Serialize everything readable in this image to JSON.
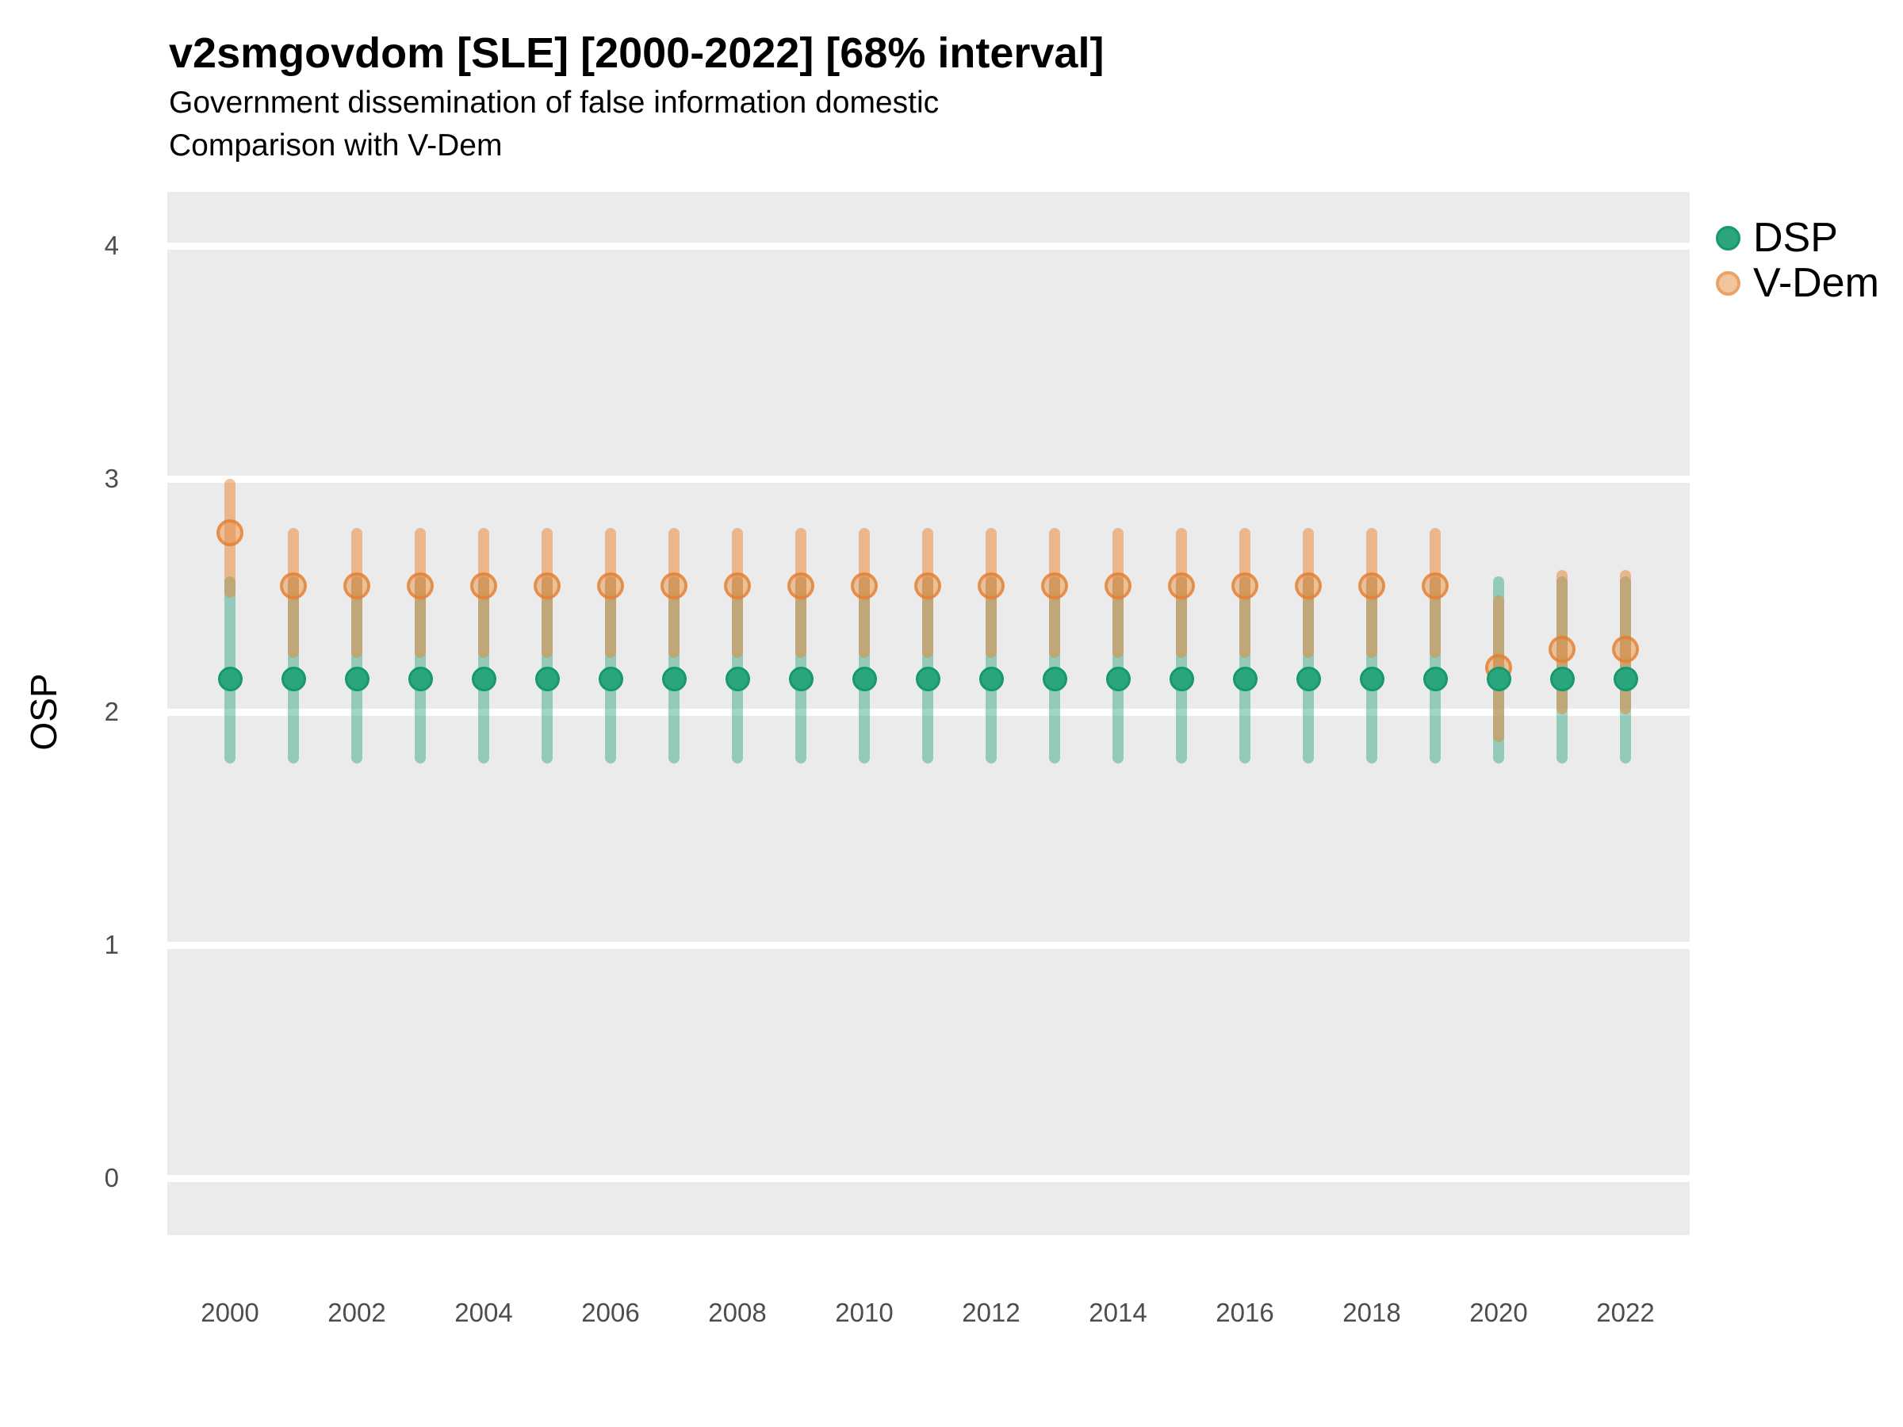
{
  "title": "v2smgovdom [SLE] [2000-2022] [68% interval]",
  "subtitle1": "Government dissemination of false information domestic",
  "subtitle2": "Comparison with V-Dem",
  "y_axis": {
    "label": "OSP",
    "ticks": [
      0,
      1,
      2,
      3,
      4
    ]
  },
  "x_axis": {
    "ticks": [
      2000,
      2002,
      2004,
      2006,
      2008,
      2010,
      2012,
      2014,
      2016,
      2018,
      2020,
      2022
    ]
  },
  "legend": {
    "items": [
      {
        "label": "DSP",
        "color": "#2AA57D"
      },
      {
        "label": "V-Dem",
        "color": "#F3C59E"
      }
    ]
  },
  "colors": {
    "panel_background": "#EBEBEB",
    "gridline": "#FFFFFF",
    "dsp_point": "#2AA57D",
    "dsp_interval": "rgba(27,158,119,0.42)",
    "vdem_point": "#E9A368",
    "vdem_interval": "rgba(232,134,58,0.52)"
  },
  "chart_data": {
    "type": "scatter",
    "note": "point estimates with 68% interval error bars",
    "title": "v2smgovdom [SLE] [2000-2022] [68% interval]",
    "xlabel": "",
    "ylabel": "OSP",
    "ylim": [
      -0.25,
      4.22
    ],
    "xlim": [
      1999,
      2023
    ],
    "grid": "horizontal-major-only",
    "legend_position": "right-top",
    "x": [
      2000,
      2001,
      2002,
      2003,
      2004,
      2005,
      2006,
      2007,
      2008,
      2009,
      2010,
      2011,
      2012,
      2013,
      2014,
      2015,
      2016,
      2017,
      2018,
      2019,
      2020,
      2021,
      2022
    ],
    "series": [
      {
        "name": "DSP",
        "est": [
          2.14,
          2.14,
          2.14,
          2.14,
          2.14,
          2.14,
          2.14,
          2.14,
          2.14,
          2.14,
          2.14,
          2.14,
          2.14,
          2.14,
          2.14,
          2.14,
          2.14,
          2.14,
          2.14,
          2.14,
          2.14,
          2.14,
          2.14
        ],
        "lo": [
          1.78,
          1.78,
          1.78,
          1.78,
          1.78,
          1.78,
          1.78,
          1.78,
          1.78,
          1.78,
          1.78,
          1.78,
          1.78,
          1.78,
          1.78,
          1.78,
          1.78,
          1.78,
          1.78,
          1.78,
          1.78,
          1.78,
          1.78
        ],
        "hi": [
          2.58,
          2.58,
          2.58,
          2.58,
          2.58,
          2.58,
          2.58,
          2.58,
          2.58,
          2.58,
          2.58,
          2.58,
          2.58,
          2.58,
          2.58,
          2.58,
          2.58,
          2.58,
          2.58,
          2.58,
          2.58,
          2.58,
          2.58
        ]
      },
      {
        "name": "V-Dem",
        "est": [
          2.77,
          2.54,
          2.54,
          2.54,
          2.54,
          2.54,
          2.54,
          2.54,
          2.54,
          2.54,
          2.54,
          2.54,
          2.54,
          2.54,
          2.54,
          2.54,
          2.54,
          2.54,
          2.54,
          2.54,
          2.19,
          2.27,
          2.27
        ],
        "lo": [
          2.49,
          2.23,
          2.23,
          2.23,
          2.23,
          2.23,
          2.23,
          2.23,
          2.23,
          2.23,
          2.23,
          2.23,
          2.23,
          2.23,
          2.23,
          2.23,
          2.23,
          2.23,
          2.23,
          2.23,
          1.87,
          1.99,
          1.99
        ],
        "hi": [
          3.0,
          2.79,
          2.79,
          2.79,
          2.79,
          2.79,
          2.79,
          2.79,
          2.79,
          2.79,
          2.79,
          2.79,
          2.79,
          2.79,
          2.79,
          2.79,
          2.79,
          2.79,
          2.79,
          2.79,
          2.5,
          2.61,
          2.61
        ]
      }
    ]
  }
}
